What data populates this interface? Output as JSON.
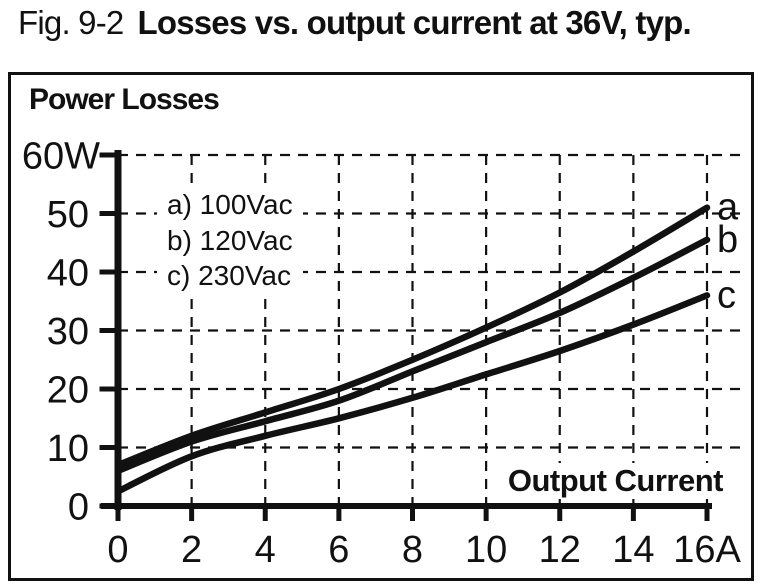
{
  "figure": {
    "label": "Fig. 9-2",
    "title": "Losses vs. output current at 36V, typ."
  },
  "panel": {
    "title": "Power Losses",
    "x_axis_label": "Output Current"
  },
  "colors": {
    "ink": "#111111",
    "background": "#ffffff"
  },
  "chart_data": {
    "type": "line",
    "title": "Power Losses",
    "xlabel": "Output Current",
    "ylabel": "Power Losses",
    "x_unit": "A",
    "y_unit": "W",
    "xlim": [
      0,
      16
    ],
    "ylim": [
      0,
      60
    ],
    "grid": true,
    "grid_style": "dashed",
    "legend_position": "upper-left-inside",
    "x_tick_values": [
      0,
      2,
      4,
      6,
      8,
      10,
      12,
      14,
      16
    ],
    "x_tick_labels": [
      "0",
      "2",
      "4",
      "6",
      "8",
      "10",
      "12",
      "14",
      "16A"
    ],
    "y_tick_values": [
      0,
      10,
      20,
      30,
      40,
      50,
      60
    ],
    "y_tick_labels": [
      "0",
      "10",
      "20",
      "30",
      "40",
      "50",
      "60W"
    ],
    "x": [
      0,
      2,
      4,
      6,
      8,
      10,
      12,
      14,
      16
    ],
    "series": [
      {
        "name": "a) 100Vac",
        "end_label": "a",
        "values": [
          7,
          12,
          16,
          20,
          25,
          30.5,
          36.5,
          43.5,
          51
        ]
      },
      {
        "name": "b) 120Vac",
        "end_label": "b",
        "values": [
          6,
          11,
          14.5,
          18,
          23,
          28,
          33,
          39,
          45.5
        ]
      },
      {
        "name": "c) 230Vac",
        "end_label": "c",
        "values": [
          2.5,
          8.5,
          12,
          15,
          18.5,
          22.5,
          26.5,
          31,
          36
        ]
      }
    ]
  }
}
